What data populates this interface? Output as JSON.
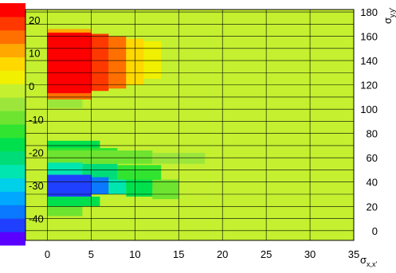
{
  "chart_data": {
    "type": "heatmap",
    "title": "",
    "xlabel": "σ",
    "xlabel_sub": "x,x'",
    "ylabel": "σ",
    "ylabel_sub": "y,y'",
    "xlim": [
      -2.5,
      35
    ],
    "ylim": [
      -8,
      182
    ],
    "x_ticks": [
      "0",
      "5",
      "10",
      "15",
      "20",
      "25",
      "30",
      "35"
    ],
    "y_ticks": [
      "0",
      "20",
      "40",
      "60",
      "80",
      "100",
      "120",
      "140",
      "160",
      "180"
    ],
    "z_ticks": [
      "20",
      "10",
      "0",
      "-10",
      "-20",
      "-30",
      "-40"
    ],
    "zlim": [
      -48,
      25
    ],
    "grid": true,
    "colorbar_position": "left",
    "colorbar_colors": [
      "#5a00ff",
      "#2040ff",
      "#0a78ff",
      "#00a8ff",
      "#00d0e8",
      "#00e6b0",
      "#00dc78",
      "#00e04c",
      "#30e430",
      "#6ee430",
      "#9ce63c",
      "#c4f030",
      "#f0f000",
      "#ffd800",
      "#ffa800",
      "#ff7000",
      "#ff3800",
      "#ff0000"
    ],
    "background_value": 0,
    "regions": [
      {
        "x": [
          0,
          5
        ],
        "y": [
          113,
          163
        ],
        "value": 24
      },
      {
        "x": [
          5,
          7
        ],
        "y": [
          115,
          162
        ],
        "value": 19
      },
      {
        "x": [
          7,
          9
        ],
        "y": [
          117,
          160
        ],
        "value": 13
      },
      {
        "x": [
          9,
          11
        ],
        "y": [
          120,
          158
        ],
        "value": 7
      },
      {
        "x": [
          11,
          13
        ],
        "y": [
          125,
          156
        ],
        "value": 3
      },
      {
        "x": [
          0,
          5
        ],
        "y": [
          108,
          113
        ],
        "value": 16
      },
      {
        "x": [
          0,
          5
        ],
        "y": [
          163,
          166
        ],
        "value": 12
      },
      {
        "x": [
          0,
          4
        ],
        "y": [
          101,
          108
        ],
        "value": -7
      },
      {
        "x": [
          0,
          6
        ],
        "y": [
          68,
          74
        ],
        "value": -17
      },
      {
        "x": [
          0,
          8
        ],
        "y": [
          58,
          68
        ],
        "value": -13
      },
      {
        "x": [
          0,
          12
        ],
        "y": [
          55,
          66
        ],
        "value": -9
      },
      {
        "x": [
          12,
          18
        ],
        "y": [
          55,
          64
        ],
        "value": -5
      },
      {
        "x": [
          0,
          4
        ],
        "y": [
          46,
          56
        ],
        "value": -25
      },
      {
        "x": [
          4,
          8
        ],
        "y": [
          40,
          55
        ],
        "value": -20
      },
      {
        "x": [
          8,
          13
        ],
        "y": [
          34,
          54
        ],
        "value": -12
      },
      {
        "x": [
          0,
          5
        ],
        "y": [
          28,
          46
        ],
        "value": -43
      },
      {
        "x": [
          5,
          7
        ],
        "y": [
          30,
          44
        ],
        "value": -36
      },
      {
        "x": [
          7,
          9
        ],
        "y": [
          30,
          42
        ],
        "value": -27
      },
      {
        "x": [
          9,
          12
        ],
        "y": [
          28,
          42
        ],
        "value": -17
      },
      {
        "x": [
          12,
          15
        ],
        "y": [
          26,
          42
        ],
        "value": -8
      },
      {
        "x": [
          0,
          6
        ],
        "y": [
          20,
          28
        ],
        "value": -18
      },
      {
        "x": [
          0,
          4
        ],
        "y": [
          12,
          20
        ],
        "value": -9
      },
      {
        "x": [
          15,
          16
        ],
        "y": [
          110,
          122
        ],
        "value": -3
      }
    ]
  }
}
